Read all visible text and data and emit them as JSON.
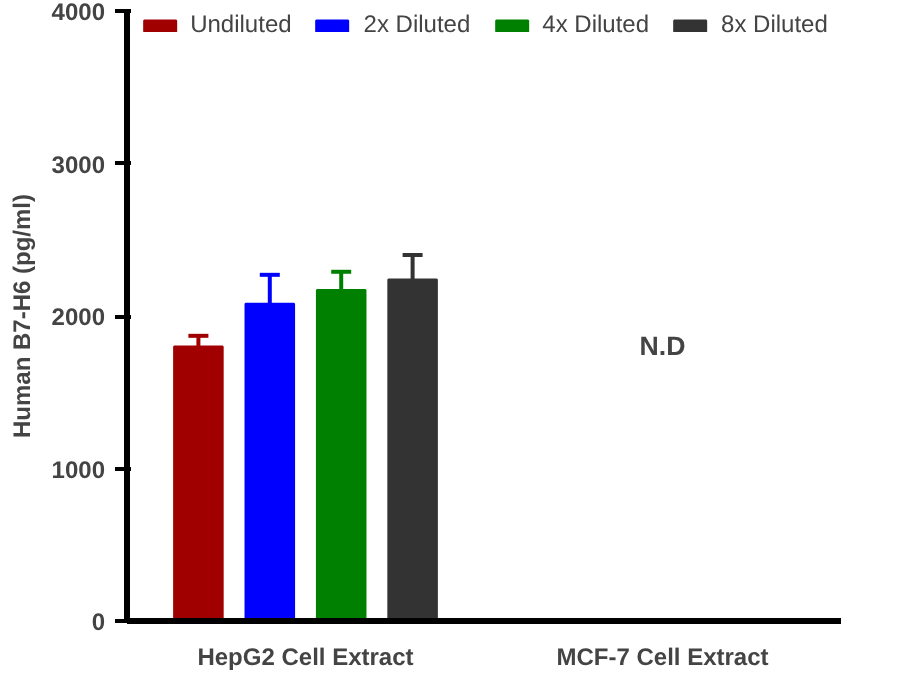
{
  "chart_data": {
    "type": "bar",
    "ylabel": "Human B7-H6 (pg/ml)",
    "categories": [
      "HepG2 Cell Extract",
      "MCF-7 Cell Extract"
    ],
    "series": [
      {
        "name": "Undiluted",
        "color": "#a00000",
        "values": [
          1800,
          null
        ],
        "errors": [
          70,
          null
        ]
      },
      {
        "name": "2x Diluted",
        "color": "#0000ff",
        "values": [
          2080,
          null
        ],
        "errors": [
          190,
          null
        ]
      },
      {
        "name": "4x Diluted",
        "color": "#008000",
        "values": [
          2170,
          null
        ],
        "errors": [
          120,
          null
        ]
      },
      {
        "name": "8x Diluted",
        "color": "#333333",
        "values": [
          2240,
          null
        ],
        "errors": [
          160,
          null
        ]
      }
    ],
    "ylim": [
      0,
      4000
    ],
    "yticks": [
      0,
      1000,
      2000,
      3000,
      4000
    ],
    "grid": false,
    "legend": "top",
    "annotations": [
      "N.D"
    ]
  }
}
